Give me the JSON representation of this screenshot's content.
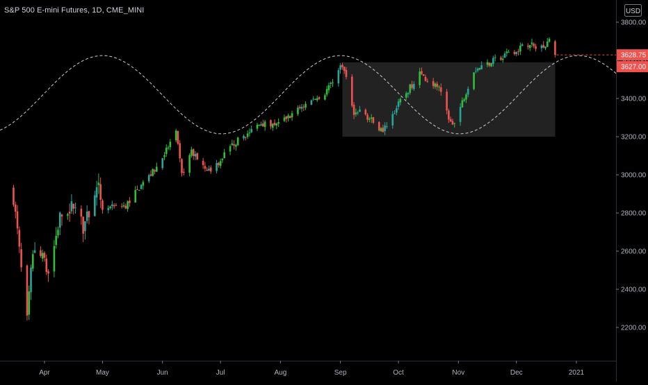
{
  "header": {
    "symbol_title": "S&P 500 E-mini Futures, 1D, CME_MINI",
    "currency": "USD"
  },
  "colors": {
    "background": "#000000",
    "up": "#26a69a",
    "up_bright": "#2fbf3a",
    "down": "#ef5350",
    "text": "#b2b5be",
    "axis_line": "#2a2e39",
    "box_fill": "#2a2a2a",
    "dashed_line": "#cfcfcf",
    "last_price_badge": "#ef5350"
  },
  "chart_data": {
    "type": "candlestick",
    "title": "S&P 500 E-mini Futures, 1D, CME_MINI",
    "y_axis": {
      "label": "USD",
      "ylim": [
        2030,
        3900
      ],
      "ticks": [
        "2200.00",
        "2400.00",
        "2600.00",
        "2800.00",
        "3000.00",
        "3200.00",
        "3400.00",
        "3600.00",
        "3800.00"
      ]
    },
    "x_axis": {
      "labels": [
        "Apr",
        "May",
        "Jun",
        "Jul",
        "Aug",
        "Sep",
        "Oct",
        "Nov",
        "Dec",
        "2021"
      ]
    },
    "series_anchors": [
      {
        "date": "2020-03-16",
        "close": 2880
      },
      {
        "date": "2020-03-18",
        "close": 2700
      },
      {
        "date": "2020-03-20",
        "close": 2500
      },
      {
        "date": "2020-03-23",
        "close": 2230
      },
      {
        "date": "2020-03-26",
        "close": 2610
      },
      {
        "date": "2020-03-31",
        "close": 2560
      },
      {
        "date": "2020-04-03",
        "close": 2480
      },
      {
        "date": "2020-04-09",
        "close": 2780
      },
      {
        "date": "2020-04-17",
        "close": 2850
      },
      {
        "date": "2020-04-21",
        "close": 2720
      },
      {
        "date": "2020-04-29",
        "close": 2930
      },
      {
        "date": "2020-05-01",
        "close": 2820
      },
      {
        "date": "2020-05-13",
        "close": 2840
      },
      {
        "date": "2020-05-19",
        "close": 2920
      },
      {
        "date": "2020-05-29",
        "close": 3040
      },
      {
        "date": "2020-06-08",
        "close": 3220
      },
      {
        "date": "2020-06-11",
        "close": 3000
      },
      {
        "date": "2020-06-16",
        "close": 3120
      },
      {
        "date": "2020-06-26",
        "close": 3010
      },
      {
        "date": "2020-07-06",
        "close": 3150
      },
      {
        "date": "2020-07-22",
        "close": 3270
      },
      {
        "date": "2020-07-31",
        "close": 3270
      },
      {
        "date": "2020-08-14",
        "close": 3370
      },
      {
        "date": "2020-08-24",
        "close": 3430
      },
      {
        "date": "2020-09-02",
        "close": 3580
      },
      {
        "date": "2020-09-08",
        "close": 3330
      },
      {
        "date": "2020-09-11",
        "close": 3340
      },
      {
        "date": "2020-09-23",
        "close": 3230
      },
      {
        "date": "2020-10-01",
        "close": 3370
      },
      {
        "date": "2020-10-12",
        "close": 3530
      },
      {
        "date": "2020-10-22",
        "close": 3450
      },
      {
        "date": "2020-10-28",
        "close": 3270
      },
      {
        "date": "2020-10-30",
        "close": 3270
      },
      {
        "date": "2020-11-09",
        "close": 3550
      },
      {
        "date": "2020-11-24",
        "close": 3620
      },
      {
        "date": "2020-12-08",
        "close": 3690
      },
      {
        "date": "2020-12-11",
        "close": 3660
      },
      {
        "date": "2020-12-18",
        "close": 3700
      },
      {
        "date": "2020-12-21",
        "close": 3628.75
      }
    ],
    "rectangle": {
      "start": "2020-09-02",
      "end": "2020-12-21",
      "top": 3590,
      "bottom": 3200
    },
    "sine_wave": {
      "mid": 3420,
      "amplitude": 205,
      "peaks": [
        "2020-05-01",
        "2020-09-01",
        "2020-12-31"
      ],
      "troughs": [
        "2020-03-03",
        "2020-07-01",
        "2020-11-01"
      ]
    },
    "price_labels": {
      "last": "3628.75",
      "second": "3627.00"
    },
    "last_price_value": 3628.75,
    "second_price_value": 3627
  }
}
